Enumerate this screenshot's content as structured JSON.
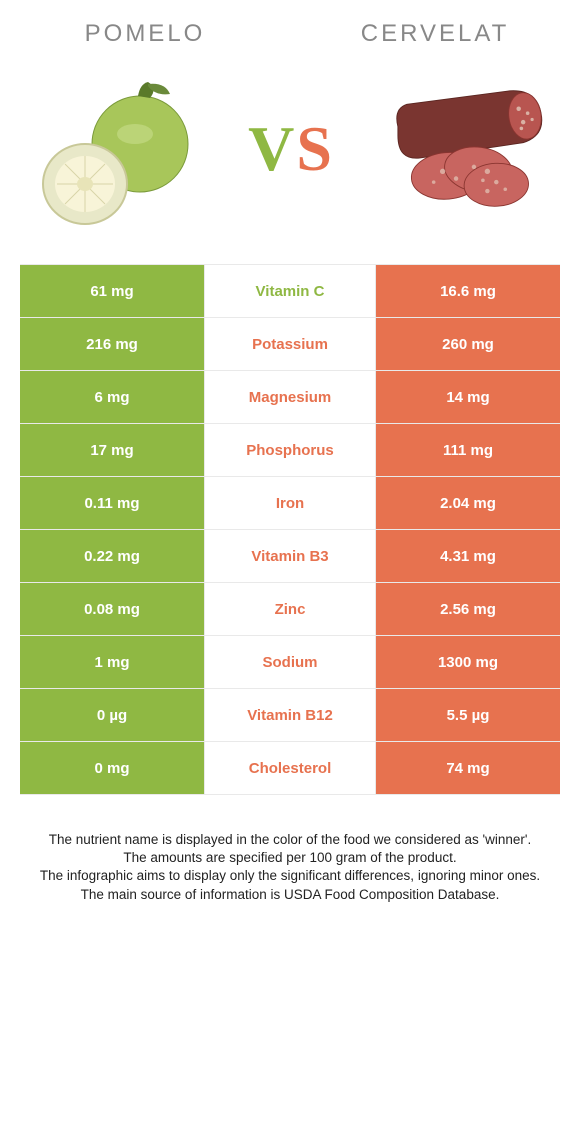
{
  "colors": {
    "left": "#8fb843",
    "right": "#e7724f",
    "title_left": "#888888",
    "title_right": "#888888",
    "row_border": "#e9e9e9",
    "text": "#222222"
  },
  "header": {
    "left_title": "POMELO",
    "right_title": "CERVELAT",
    "vs_v": "V",
    "vs_s": "S"
  },
  "rows": [
    {
      "left": "61 mg",
      "mid": "Vitamin C",
      "right": "16.6 mg",
      "winner": "left"
    },
    {
      "left": "216 mg",
      "mid": "Potassium",
      "right": "260 mg",
      "winner": "right"
    },
    {
      "left": "6 mg",
      "mid": "Magnesium",
      "right": "14 mg",
      "winner": "right"
    },
    {
      "left": "17 mg",
      "mid": "Phosphorus",
      "right": "111 mg",
      "winner": "right"
    },
    {
      "left": "0.11 mg",
      "mid": "Iron",
      "right": "2.04 mg",
      "winner": "right"
    },
    {
      "left": "0.22 mg",
      "mid": "Vitamin B3",
      "right": "4.31 mg",
      "winner": "right"
    },
    {
      "left": "0.08 mg",
      "mid": "Zinc",
      "right": "2.56 mg",
      "winner": "right"
    },
    {
      "left": "1 mg",
      "mid": "Sodium",
      "right": "1300 mg",
      "winner": "right"
    },
    {
      "left": "0 µg",
      "mid": "Vitamin B12",
      "right": "5.5 µg",
      "winner": "right"
    },
    {
      "left": "0 mg",
      "mid": "Cholesterol",
      "right": "74 mg",
      "winner": "right"
    }
  ],
  "footer": {
    "line1": "The nutrient name is displayed in the color of the food we considered as 'winner'.",
    "line2": "The amounts are specified per 100 gram of the product.",
    "line3": "The infographic aims to display only the significant differences, ignoring minor ones.",
    "line4": "The main source of information is USDA Food Composition Database."
  }
}
